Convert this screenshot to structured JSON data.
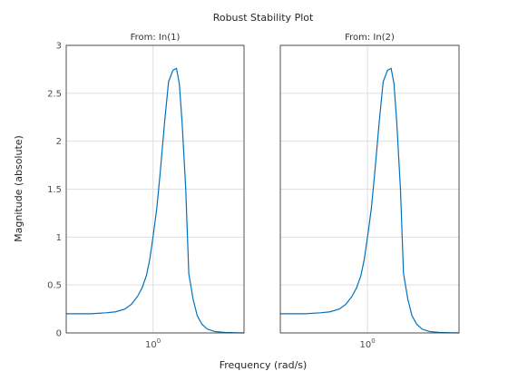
{
  "chart_data": {
    "type": "line",
    "title": "Robust Stability Plot",
    "xlabel": "Frequency (rad/s)",
    "ylabel": "Magnitude (absolute)",
    "x_scale": "log",
    "xlim": [
      0.33,
      3.2
    ],
    "ylim": [
      0,
      3
    ],
    "y_ticks": [
      "0",
      "0.5",
      "1",
      "1.5",
      "2",
      "2.5",
      "3"
    ],
    "y_tick_values": [
      0,
      0.5,
      1,
      1.5,
      2,
      2.5,
      3
    ],
    "x_ticks": [
      {
        "base": "10",
        "exp": "0",
        "value": 1
      }
    ],
    "grid": true,
    "panels": [
      {
        "title": "From: In(1)",
        "series": [
          {
            "color": "#0072bd",
            "x": [
              0.33,
              0.45,
              0.55,
              0.62,
              0.7,
              0.76,
              0.82,
              0.87,
              0.92,
              0.96,
              1.0,
              1.05,
              1.1,
              1.16,
              1.22,
              1.29,
              1.35,
              1.4,
              1.45,
              1.52,
              1.58,
              1.67,
              1.76,
              1.87,
              2.0,
              2.2,
              2.5,
              2.9,
              3.2
            ],
            "y": [
              0.2,
              0.2,
              0.21,
              0.22,
              0.25,
              0.3,
              0.38,
              0.47,
              0.6,
              0.77,
              1.0,
              1.3,
              1.7,
              2.2,
              2.62,
              2.74,
              2.76,
              2.6,
              2.2,
              1.5,
              0.62,
              0.35,
              0.18,
              0.09,
              0.04,
              0.015,
              0.005,
              0.002,
              0.0
            ]
          }
        ]
      },
      {
        "title": "From: In(2)",
        "series": [
          {
            "color": "#0072bd",
            "x": [
              0.33,
              0.45,
              0.55,
              0.62,
              0.7,
              0.76,
              0.82,
              0.87,
              0.92,
              0.96,
              1.0,
              1.05,
              1.1,
              1.16,
              1.22,
              1.29,
              1.35,
              1.4,
              1.45,
              1.52,
              1.58,
              1.67,
              1.76,
              1.87,
              2.0,
              2.2,
              2.5,
              2.9,
              3.2
            ],
            "y": [
              0.2,
              0.2,
              0.21,
              0.22,
              0.25,
              0.3,
              0.38,
              0.47,
              0.6,
              0.77,
              1.0,
              1.3,
              1.7,
              2.2,
              2.62,
              2.74,
              2.76,
              2.6,
              2.2,
              1.5,
              0.62,
              0.35,
              0.18,
              0.09,
              0.04,
              0.015,
              0.005,
              0.002,
              0.0
            ]
          }
        ]
      }
    ]
  }
}
